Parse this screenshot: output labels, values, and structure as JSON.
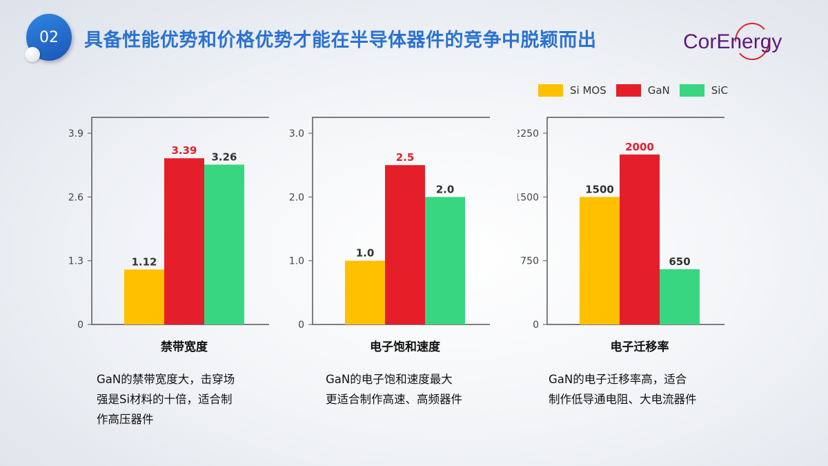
{
  "header": {
    "badge": "02",
    "title": "具备性能优势和价格优势才能在半导体器件的竞争中脱颖而出",
    "logo_text": "CorEnergy"
  },
  "legend": [
    {
      "label": "Si MOS",
      "color": "#FFC000"
    },
    {
      "label": "GaN",
      "color": "#E41F2A"
    },
    {
      "label": "SiC",
      "color": "#38D681"
    }
  ],
  "chart_data": [
    {
      "type": "bar",
      "title": "禁带宽度",
      "categories": [
        "Si MOS",
        "GaN",
        "SiC"
      ],
      "values": [
        1.12,
        3.39,
        3.26
      ],
      "value_labels": [
        "1.12",
        "3.39",
        "3.26"
      ],
      "yticks": [
        "0",
        "1.3",
        "2.6",
        "3.9"
      ],
      "ylim": [
        0,
        3.9
      ]
    },
    {
      "type": "bar",
      "title": "电子饱和速度",
      "categories": [
        "Si MOS",
        "GaN",
        "SiC"
      ],
      "values": [
        1.0,
        2.5,
        2.0
      ],
      "value_labels": [
        "1.0",
        "2.5",
        "2.0"
      ],
      "yticks": [
        "0",
        "1.0",
        "2.0",
        "3.0"
      ],
      "ylim": [
        0,
        3.0
      ]
    },
    {
      "type": "bar",
      "title": "电子迁移率",
      "categories": [
        "Si MOS",
        "GaN",
        "SiC"
      ],
      "values": [
        1500,
        2000,
        650
      ],
      "value_labels": [
        "1500",
        "2000",
        "650"
      ],
      "yticks": [
        "0",
        "750",
        "1500",
        "2250"
      ],
      "ylim": [
        0,
        2250
      ]
    }
  ],
  "descriptions": [
    [
      "GaN的禁带宽度大，击穿场",
      "强是Si材料的十倍，适合制",
      "作高压器件"
    ],
    [
      "GaN的电子饱和速度最大",
      "更适合制作高速、高频器件"
    ],
    [
      "GaN的电子迁移率高，适合",
      "制作低导通电阻、大电流器件"
    ]
  ],
  "colors": {
    "title": "#2A72D2",
    "highlight_label": "#E41F2A"
  }
}
